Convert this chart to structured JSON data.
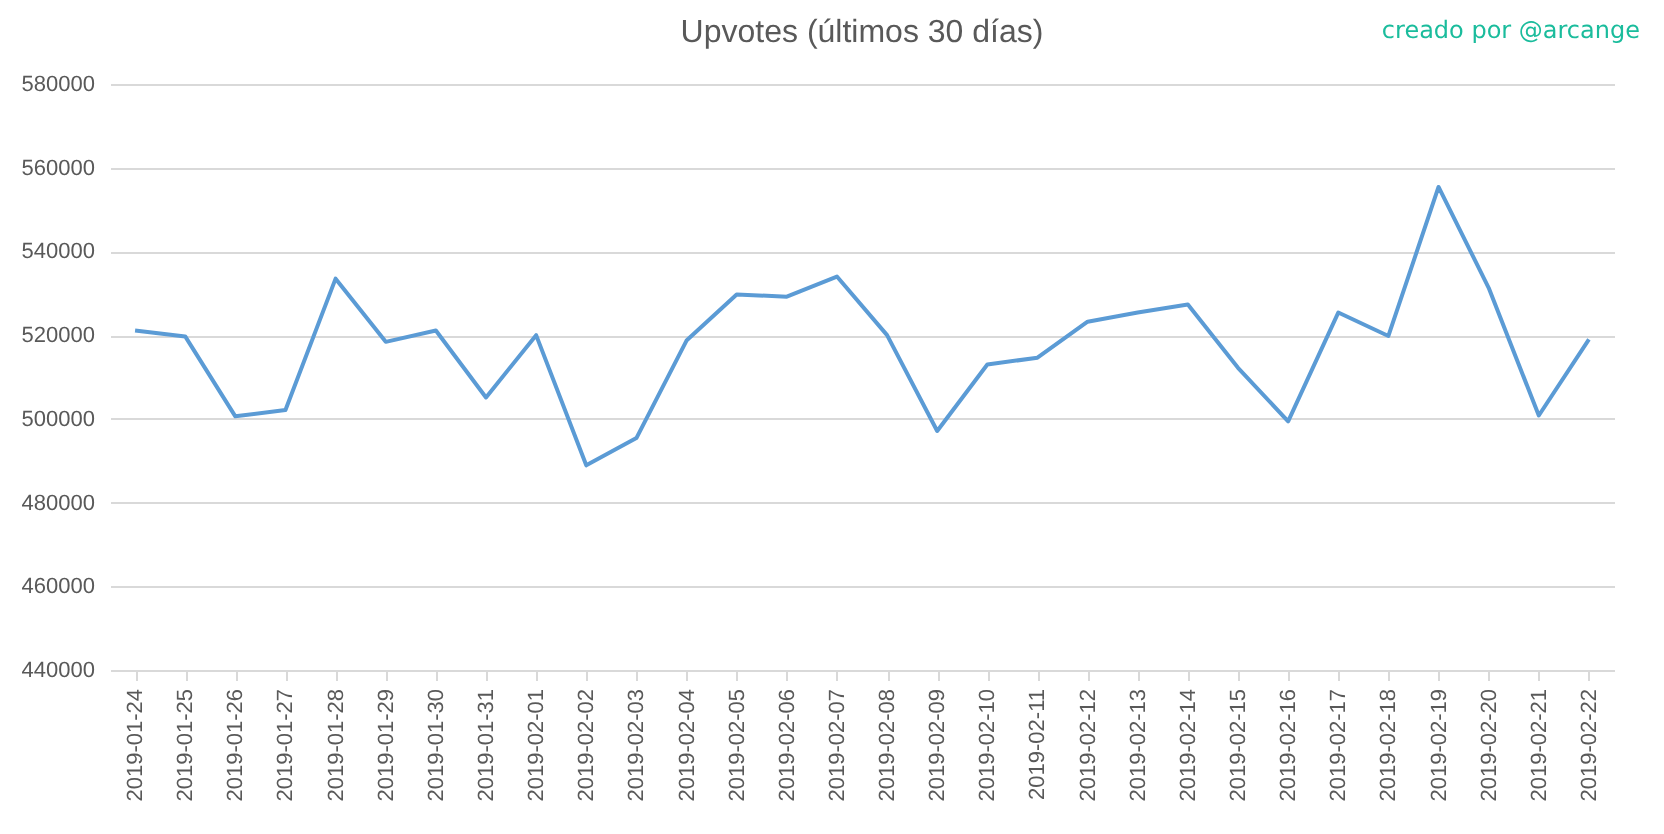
{
  "chart_data": {
    "type": "line",
    "title": "Upvotes (últimos 30 días)",
    "annotations": [
      "creado por @arcange"
    ],
    "categories": [
      "2019-01-24",
      "2019-01-25",
      "2019-01-26",
      "2019-01-27",
      "2019-01-28",
      "2019-01-29",
      "2019-01-30",
      "2019-01-31",
      "2019-02-01",
      "2019-02-02",
      "2019-02-03",
      "2019-02-04",
      "2019-02-05",
      "2019-02-06",
      "2019-02-07",
      "2019-02-08",
      "2019-02-09",
      "2019-02-10",
      "2019-02-11",
      "2019-02-12",
      "2019-02-13",
      "2019-02-14",
      "2019-02-15",
      "2019-02-16",
      "2019-02-17",
      "2019-02-18",
      "2019-02-19",
      "2019-02-20",
      "2019-02-21",
      "2019-02-22"
    ],
    "series": [
      {
        "color": "#5b9bd5",
        "values": [
          521100,
          519700,
          500600,
          502100,
          533500,
          518400,
          521100,
          505100,
          520000,
          488900,
          495400,
          518700,
          529700,
          529200,
          534000,
          520000,
          497100,
          513000,
          514600,
          523200,
          525400,
          527300,
          512200,
          499400,
          525400,
          519800,
          555400,
          531300,
          500800,
          519000
        ]
      }
    ],
    "ylim": [
      440000,
      580000
    ],
    "yticks": [
      440000,
      460000,
      480000,
      500000,
      520000,
      540000,
      560000,
      580000
    ],
    "grid": "y"
  }
}
